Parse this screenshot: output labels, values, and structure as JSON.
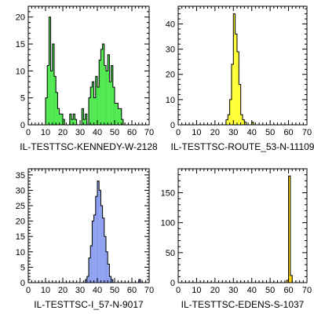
{
  "chart_data": [
    {
      "type": "histogram",
      "xlabel": "IL-TESTTSC-KENNEDY-W-2128",
      "color": "#4de84d",
      "xlim": [
        0,
        70
      ],
      "ylim": [
        0,
        22
      ],
      "xticks": [
        0,
        10,
        20,
        30,
        40,
        50,
        60,
        70
      ],
      "yticks": [
        0,
        5,
        10,
        15,
        20
      ],
      "bin_width": 1,
      "bins_start": 10,
      "values": [
        5,
        11,
        20,
        10,
        15,
        9,
        6,
        3,
        2,
        2,
        1,
        0,
        0,
        0,
        2,
        1,
        2,
        1,
        0,
        0,
        0,
        3,
        1,
        2,
        0,
        5,
        7,
        8,
        5,
        9,
        7,
        12,
        14,
        15,
        11,
        10,
        13,
        8,
        11,
        7,
        4,
        4,
        3,
        3,
        1
      ]
    },
    {
      "type": "histogram",
      "xlabel": "IL-TESTTSC-ROUTE_53-N-11109",
      "color": "#ffff33",
      "xlim": [
        0,
        70
      ],
      "ylim": [
        0,
        47
      ],
      "xticks": [
        0,
        10,
        20,
        30,
        40,
        50,
        60,
        70
      ],
      "yticks": [
        0,
        10,
        20,
        30,
        40
      ],
      "bin_width": 1,
      "bins_start": 26,
      "values": [
        2,
        4,
        10,
        24,
        44,
        36,
        29,
        16,
        4,
        2,
        1,
        0,
        0,
        0,
        1
      ]
    },
    {
      "type": "histogram",
      "xlabel": "IL-TESTTSC-I_57-N-9017",
      "color": "#8c9ef0",
      "xlim": [
        0,
        70
      ],
      "ylim": [
        0,
        37
      ],
      "xticks": [
        0,
        10,
        20,
        30,
        40,
        50,
        60,
        70
      ],
      "yticks": [
        0,
        5,
        10,
        15,
        20,
        25,
        30,
        35
      ],
      "bin_width": 1,
      "bins_start": 33,
      "values": [
        1,
        2,
        8,
        12,
        20,
        22,
        28,
        33,
        30,
        25,
        21,
        15,
        10,
        6,
        2,
        1,
        0,
        0,
        0,
        0,
        0,
        0,
        0,
        0,
        0,
        0,
        0,
        0,
        0,
        0,
        0,
        1
      ]
    },
    {
      "type": "histogram",
      "xlabel": "IL-TESTTSC-EDENS-S-1037",
      "color": "#ffd700",
      "xlim": [
        0,
        70
      ],
      "ylim": [
        0,
        190
      ],
      "xticks": [
        0,
        10,
        20,
        30,
        40,
        50,
        60,
        70
      ],
      "yticks": [
        0,
        50,
        100,
        150
      ],
      "bin_width": 1,
      "bins_start": 59,
      "values": [
        4,
        178,
        12
      ]
    }
  ]
}
